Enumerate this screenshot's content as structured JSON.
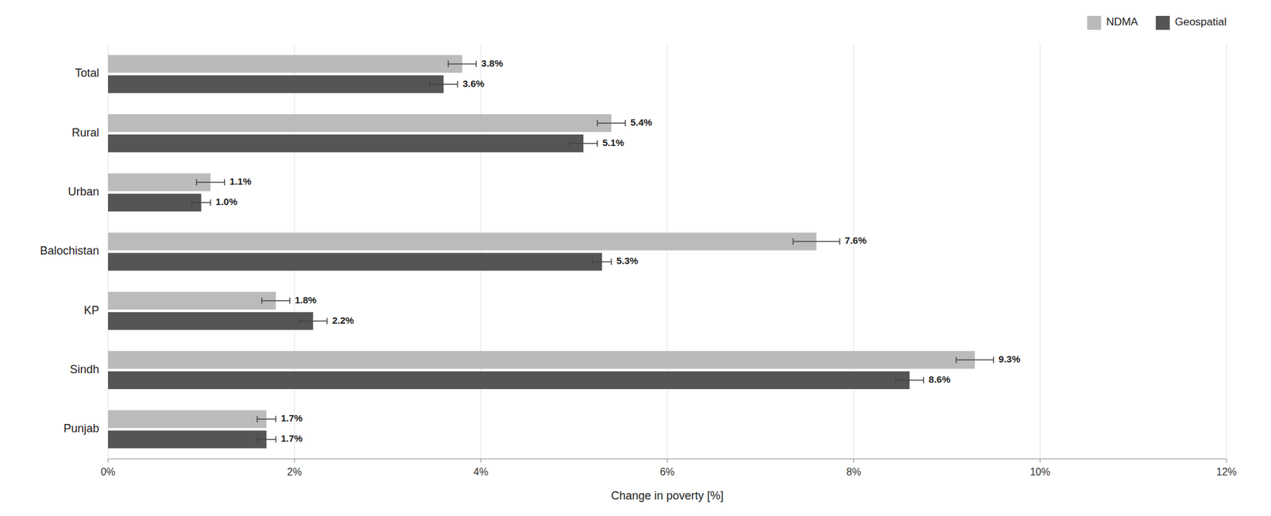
{
  "chart_data": {
    "type": "bar",
    "orientation": "horizontal",
    "categories": [
      "Total",
      "Rural",
      "Urban",
      "Balochistan",
      "KP",
      "Sindh",
      "Punjab"
    ],
    "series": [
      {
        "name": "NDMA",
        "color": "#bbbbbb",
        "values": [
          3.8,
          5.4,
          1.1,
          7.6,
          1.8,
          9.3,
          1.7
        ],
        "errors": [
          0.15,
          0.15,
          0.15,
          0.25,
          0.15,
          0.2,
          0.1
        ],
        "value_labels": [
          "3.8%",
          "5.4%",
          "1.1%",
          "7.6%",
          "1.8%",
          "9.3%",
          "1.7%"
        ]
      },
      {
        "name": "Geospatial",
        "color": "#555555",
        "values": [
          3.6,
          5.1,
          1.0,
          5.3,
          2.2,
          8.6,
          1.7
        ],
        "errors": [
          0.15,
          0.15,
          0.1,
          0.1,
          0.15,
          0.15,
          0.1
        ],
        "value_labels": [
          "3.6%",
          "5.1%",
          "1.0%",
          "5.3%",
          "2.2%",
          "8.6%",
          "1.7%"
        ]
      }
    ],
    "xlabel": "Change in poverty [%]",
    "xlim": [
      0,
      12
    ],
    "xticks": [
      {
        "value": 0,
        "label": "0%"
      },
      {
        "value": 2,
        "label": "2%"
      },
      {
        "value": 4,
        "label": "4%"
      },
      {
        "value": 6,
        "label": "6%"
      },
      {
        "value": 8,
        "label": "8%"
      },
      {
        "value": 10,
        "label": "10%"
      },
      {
        "value": 12,
        "label": "12%"
      }
    ],
    "grid": true,
    "legend": "upper right",
    "data_labels": true
  }
}
